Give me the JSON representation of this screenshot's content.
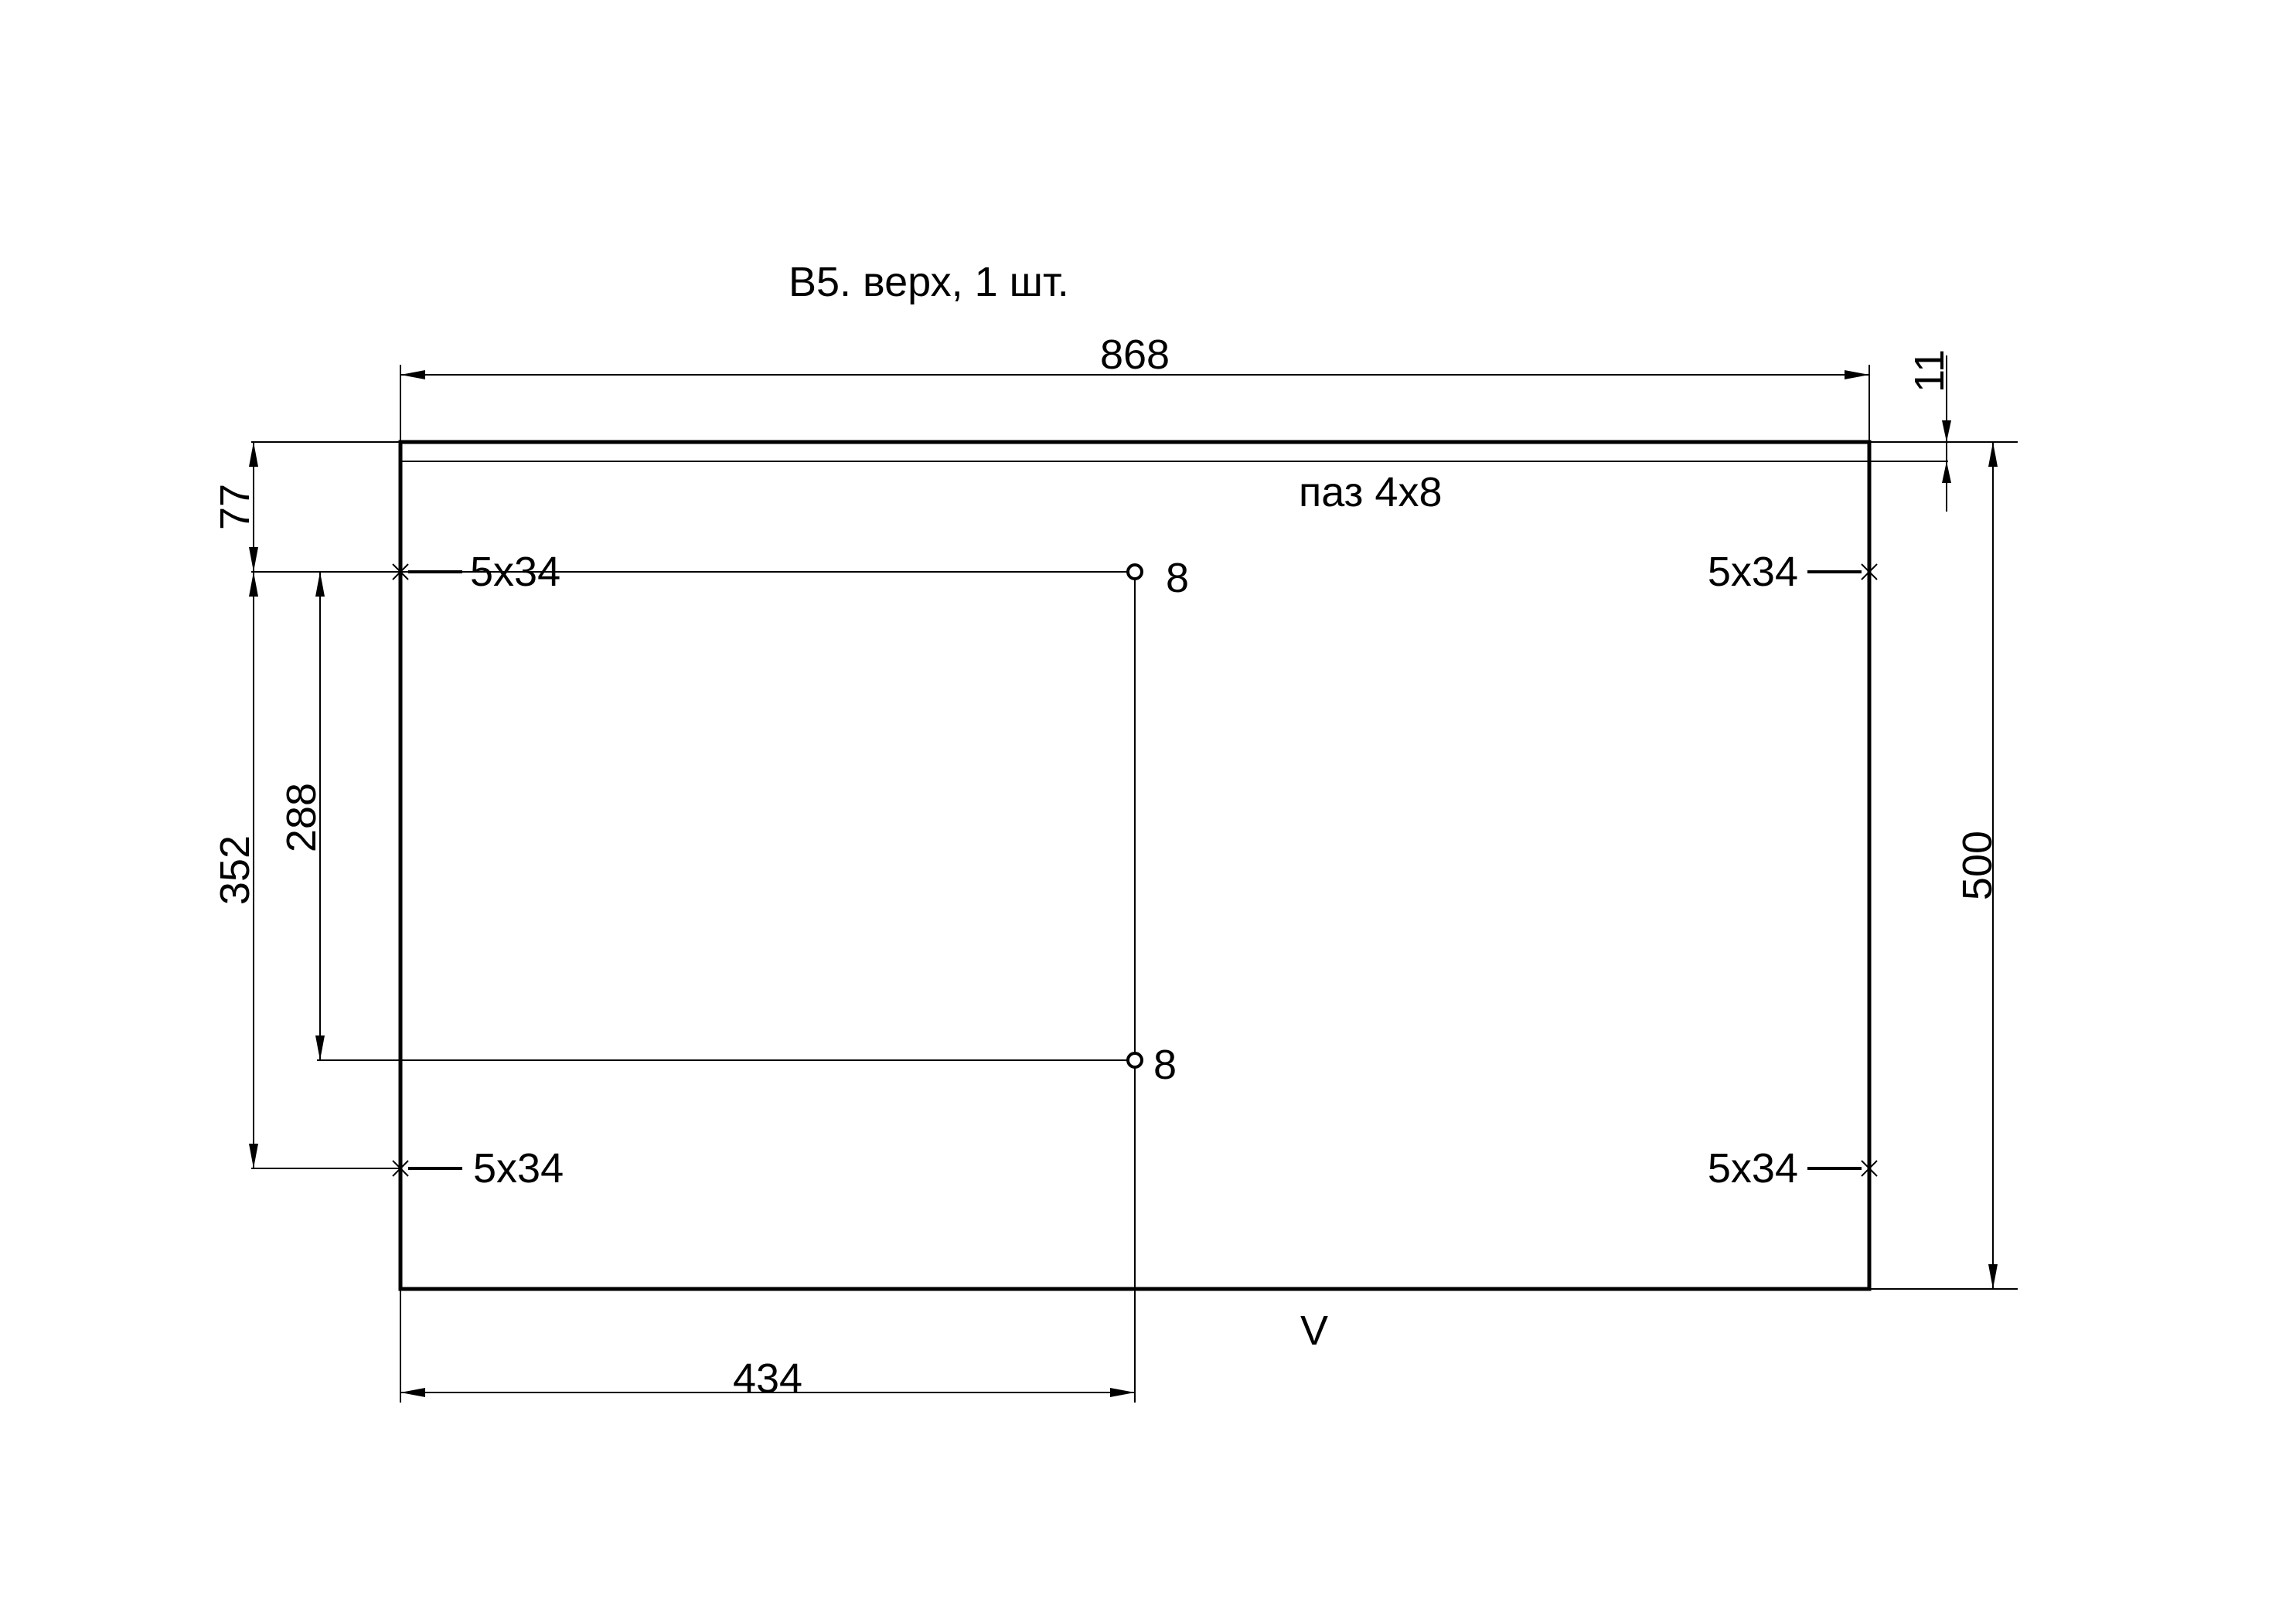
{
  "drawing": {
    "title": "В5. верх, 1 шт.",
    "groove_label": "паз 4х8",
    "grain_mark": "V",
    "dimensions": {
      "width": "868",
      "height": "500",
      "groove_offset": "11",
      "top_hole_offset": "77",
      "outer_hole_spacing": "352",
      "inner_hole_spacing": "288",
      "center_hole_x": "434"
    },
    "holes": {
      "edge_top_left": "5х34",
      "edge_top_right": "5х34",
      "edge_bottom_left": "5х34",
      "edge_bottom_right": "5х34",
      "face_upper": "8",
      "face_lower": "8"
    }
  }
}
